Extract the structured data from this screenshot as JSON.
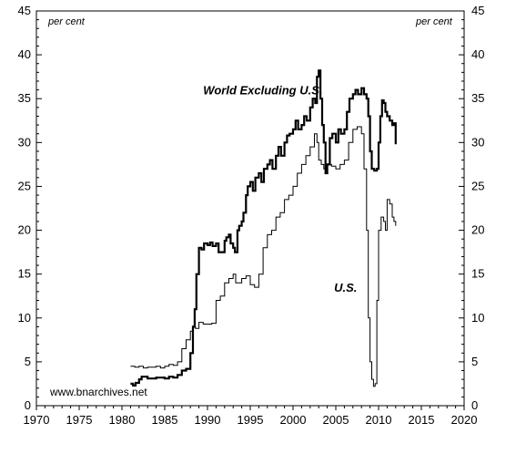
{
  "chart_data": {
    "type": "line",
    "left_axis_unit": "per cent",
    "right_axis_unit": "per cent",
    "credit": "www.bnarchives.net",
    "xlim": [
      1970,
      2020
    ],
    "ylim": [
      0,
      45
    ],
    "x_ticks": [
      1970,
      1975,
      1980,
      1985,
      1990,
      1995,
      2000,
      2005,
      2010,
      2015,
      2020
    ],
    "y_ticks": [
      0,
      5,
      10,
      15,
      20,
      25,
      30,
      35,
      40,
      45
    ],
    "grid": false,
    "series": [
      {
        "name": "World Excluding U.S.",
        "line_weight": "thick",
        "label_anchor": [
          1989.5,
          35.5
        ],
        "color": "#000000",
        "points": [
          [
            1981.0,
            2.5
          ],
          [
            1981.3,
            2.3
          ],
          [
            1981.6,
            2.6
          ],
          [
            1982.0,
            3.0
          ],
          [
            1982.3,
            3.3
          ],
          [
            1983.0,
            3.1
          ],
          [
            1984.0,
            3.2
          ],
          [
            1985.0,
            3.1
          ],
          [
            1985.5,
            3.3
          ],
          [
            1986.0,
            3.2
          ],
          [
            1986.5,
            3.5
          ],
          [
            1987.0,
            4.0
          ],
          [
            1987.5,
            4.2
          ],
          [
            1988.0,
            6.0
          ],
          [
            1988.3,
            9.0
          ],
          [
            1988.5,
            11.0
          ],
          [
            1988.7,
            15.0
          ],
          [
            1989.0,
            18.0
          ],
          [
            1989.3,
            17.8
          ],
          [
            1989.6,
            18.5
          ],
          [
            1990.0,
            18.3
          ],
          [
            1990.3,
            18.6
          ],
          [
            1990.6,
            18.2
          ],
          [
            1991.0,
            18.5
          ],
          [
            1991.3,
            17.5
          ],
          [
            1991.6,
            17.5
          ],
          [
            1992.0,
            18.8
          ],
          [
            1992.2,
            19.2
          ],
          [
            1992.5,
            19.5
          ],
          [
            1992.7,
            18.5
          ],
          [
            1993.0,
            18.0
          ],
          [
            1993.2,
            17.5
          ],
          [
            1993.5,
            20.0
          ],
          [
            1993.7,
            20.5
          ],
          [
            1994.0,
            21.0
          ],
          [
            1994.2,
            22.0
          ],
          [
            1994.5,
            24.0
          ],
          [
            1994.7,
            25.0
          ],
          [
            1995.0,
            25.5
          ],
          [
            1995.3,
            24.5
          ],
          [
            1995.6,
            26.0
          ],
          [
            1996.0,
            26.5
          ],
          [
            1996.3,
            25.5
          ],
          [
            1996.6,
            27.0
          ],
          [
            1997.0,
            27.5
          ],
          [
            1997.3,
            28.0
          ],
          [
            1997.6,
            27.0
          ],
          [
            1998.0,
            28.5
          ],
          [
            1998.3,
            29.5
          ],
          [
            1998.6,
            28.5
          ],
          [
            1999.0,
            30.0
          ],
          [
            1999.3,
            30.8
          ],
          [
            1999.6,
            31.0
          ],
          [
            2000.0,
            31.5
          ],
          [
            2000.3,
            32.5
          ],
          [
            2000.6,
            31.5
          ],
          [
            2001.0,
            32.0
          ],
          [
            2001.3,
            33.0
          ],
          [
            2001.6,
            32.5
          ],
          [
            2002.0,
            34.0
          ],
          [
            2002.3,
            35.0
          ],
          [
            2002.6,
            34.5
          ],
          [
            2002.8,
            37.5
          ],
          [
            2003.0,
            38.2
          ],
          [
            2003.2,
            35.0
          ],
          [
            2003.4,
            32.0
          ],
          [
            2003.6,
            30.0
          ],
          [
            2003.8,
            26.5
          ],
          [
            2004.0,
            27.5
          ],
          [
            2004.3,
            30.5
          ],
          [
            2004.6,
            31.0
          ],
          [
            2005.0,
            30.0
          ],
          [
            2005.3,
            31.5
          ],
          [
            2005.6,
            31.0
          ],
          [
            2006.0,
            31.5
          ],
          [
            2006.3,
            33.5
          ],
          [
            2006.6,
            35.0
          ],
          [
            2007.0,
            35.5
          ],
          [
            2007.3,
            36.0
          ],
          [
            2007.6,
            35.5
          ],
          [
            2008.0,
            36.2
          ],
          [
            2008.3,
            35.5
          ],
          [
            2008.6,
            35.0
          ],
          [
            2008.8,
            33.0
          ],
          [
            2009.0,
            29.0
          ],
          [
            2009.2,
            27.0
          ],
          [
            2009.5,
            26.8
          ],
          [
            2009.8,
            27.0
          ],
          [
            2010.0,
            30.0
          ],
          [
            2010.2,
            33.0
          ],
          [
            2010.4,
            34.8
          ],
          [
            2010.6,
            34.5
          ],
          [
            2010.8,
            33.5
          ],
          [
            2011.0,
            33.0
          ],
          [
            2011.3,
            32.5
          ],
          [
            2011.6,
            32.0
          ],
          [
            2011.8,
            32.2
          ],
          [
            2012.0,
            29.8
          ]
        ]
      },
      {
        "name": "U.S.",
        "line_weight": "thin",
        "label_anchor": [
          2004.8,
          13.0
        ],
        "color": "#000000",
        "points": [
          [
            1981.0,
            4.5
          ],
          [
            1981.5,
            4.4
          ],
          [
            1982.0,
            4.5
          ],
          [
            1982.5,
            4.3
          ],
          [
            1983.0,
            4.4
          ],
          [
            1984.0,
            4.5
          ],
          [
            1984.5,
            4.3
          ],
          [
            1985.0,
            4.5
          ],
          [
            1985.5,
            4.7
          ],
          [
            1986.0,
            4.6
          ],
          [
            1986.5,
            5.0
          ],
          [
            1987.0,
            6.5
          ],
          [
            1987.5,
            7.5
          ],
          [
            1988.0,
            8.5
          ],
          [
            1988.3,
            9.0
          ],
          [
            1988.6,
            8.8
          ],
          [
            1989.0,
            9.5
          ],
          [
            1989.5,
            9.3
          ],
          [
            1990.0,
            9.3
          ],
          [
            1990.5,
            9.4
          ],
          [
            1991.0,
            12.0
          ],
          [
            1991.5,
            12.5
          ],
          [
            1992.0,
            14.0
          ],
          [
            1992.5,
            14.5
          ],
          [
            1993.0,
            15.0
          ],
          [
            1993.3,
            14.0
          ],
          [
            1993.6,
            14.0
          ],
          [
            1994.0,
            14.5
          ],
          [
            1994.5,
            14.8
          ],
          [
            1995.0,
            13.8
          ],
          [
            1995.5,
            13.5
          ],
          [
            1996.0,
            15.0
          ],
          [
            1996.5,
            18.0
          ],
          [
            1997.0,
            19.5
          ],
          [
            1997.5,
            20.0
          ],
          [
            1998.0,
            21.5
          ],
          [
            1998.5,
            22.0
          ],
          [
            1999.0,
            23.5
          ],
          [
            1999.5,
            24.0
          ],
          [
            2000.0,
            25.0
          ],
          [
            2000.5,
            26.5
          ],
          [
            2001.0,
            27.5
          ],
          [
            2001.5,
            28.5
          ],
          [
            2002.0,
            29.5
          ],
          [
            2002.5,
            31.0
          ],
          [
            2002.8,
            30.0
          ],
          [
            2003.0,
            28.0
          ],
          [
            2003.3,
            27.5
          ],
          [
            2003.6,
            27.0
          ],
          [
            2004.0,
            27.5
          ],
          [
            2004.5,
            27.3
          ],
          [
            2005.0,
            27.0
          ],
          [
            2005.5,
            27.5
          ],
          [
            2006.0,
            28.0
          ],
          [
            2006.5,
            30.0
          ],
          [
            2007.0,
            31.5
          ],
          [
            2007.5,
            31.8
          ],
          [
            2008.0,
            31.0
          ],
          [
            2008.3,
            27.0
          ],
          [
            2008.6,
            20.0
          ],
          [
            2008.8,
            10.0
          ],
          [
            2009.0,
            5.0
          ],
          [
            2009.2,
            3.0
          ],
          [
            2009.4,
            2.2
          ],
          [
            2009.6,
            2.5
          ],
          [
            2009.8,
            12.0
          ],
          [
            2010.0,
            20.0
          ],
          [
            2010.3,
            21.5
          ],
          [
            2010.6,
            21.0
          ],
          [
            2010.8,
            20.0
          ],
          [
            2011.0,
            23.5
          ],
          [
            2011.3,
            23.0
          ],
          [
            2011.6,
            21.5
          ],
          [
            2011.8,
            21.0
          ],
          [
            2012.0,
            20.5
          ]
        ]
      }
    ]
  }
}
